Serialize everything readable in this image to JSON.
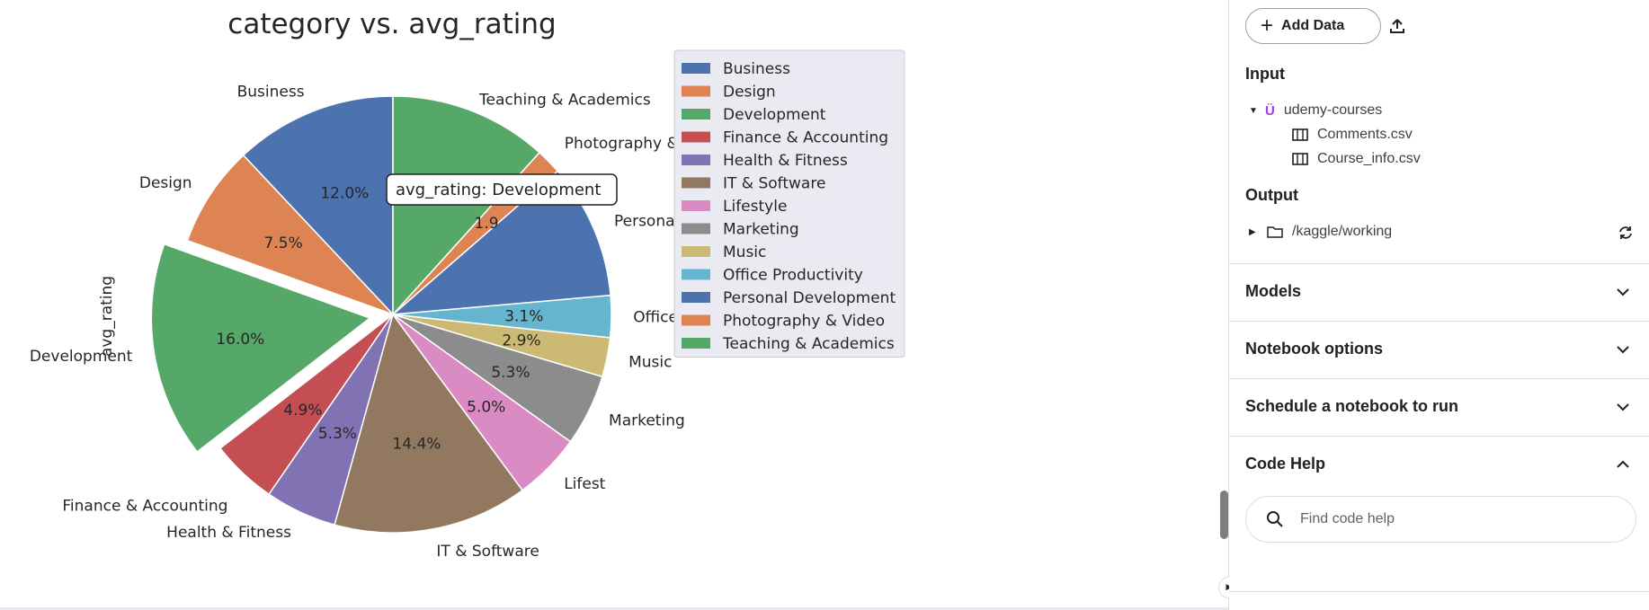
{
  "chart_data": {
    "type": "pie",
    "title": "category vs. avg_rating",
    "ylabel": "avg_rating",
    "categories": [
      "Business",
      "Design",
      "Development",
      "Finance & Accounting",
      "Health & Fitness",
      "IT & Software",
      "Lifestyle",
      "Marketing",
      "Music",
      "Office Productivity",
      "Personal Development",
      "Photography & Video",
      "Teaching & Academics"
    ],
    "values": [
      12.0,
      7.5,
      16.0,
      4.9,
      5.3,
      14.4,
      5.0,
      5.3,
      2.9,
      3.1,
      10.0,
      1.9,
      11.7
    ],
    "percent_labels": [
      "12.0%",
      "7.5%",
      "16.0%",
      "4.9%",
      "5.3%",
      "14.4%",
      "5.0%",
      "5.3%",
      "2.9%",
      "3.1%",
      "",
      "1.9",
      "11.7%"
    ],
    "outer_labels": [
      "Business",
      "Design",
      "Development",
      "Finance & Accounting",
      "Health & Fitness",
      "IT & Software",
      "Lifest",
      "Marketing",
      "Music",
      "Office Productivit",
      "Personal Development",
      "Photography & Video",
      "Teaching & Academics"
    ],
    "colors": [
      "#4c72b0",
      "#dd8452",
      "#55a868",
      "#c44e52",
      "#8172b3",
      "#937860",
      "#da8bc3",
      "#8c8c8c",
      "#ccb974",
      "#64b5cd",
      "#4c72b0",
      "#dd8452",
      "#55a868"
    ],
    "exploded": "Development",
    "tooltip": "avg_rating: Development",
    "legend": {
      "placement": "right",
      "entries": [
        "Business",
        "Design",
        "Development",
        "Finance & Accounting",
        "Health & Fitness",
        "IT & Software",
        "Lifestyle",
        "Marketing",
        "Music",
        "Office Productivity",
        "Personal Development",
        "Photography & Video",
        "Teaching & Academics"
      ]
    }
  },
  "panel": {
    "add_data_label": "Add Data",
    "input_title": "Input",
    "dataset_name": "udemy-courses",
    "files": [
      "Comments.csv",
      "Course_info.csv"
    ],
    "output_title": "Output",
    "output_path": "/kaggle/working",
    "sections": [
      "Models",
      "Notebook options",
      "Schedule a notebook to run",
      "Code Help"
    ],
    "search_placeholder": "Find code help"
  }
}
